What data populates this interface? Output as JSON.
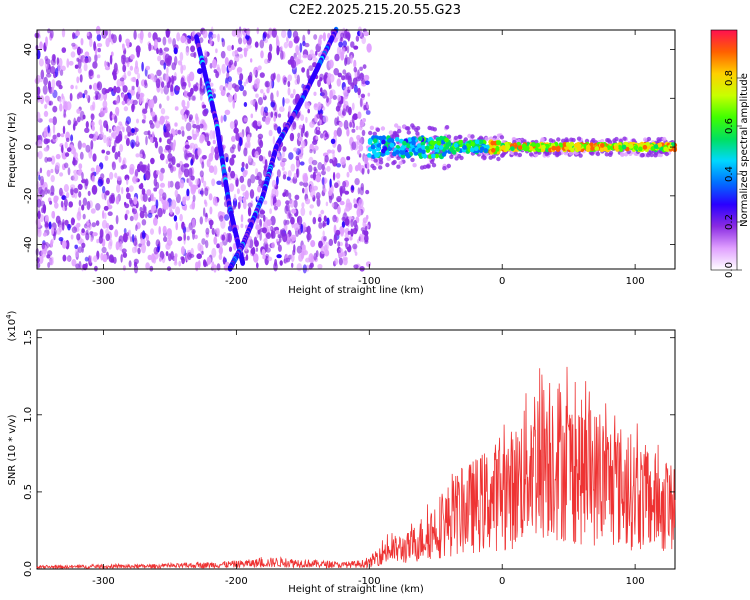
{
  "title": "C2E2.2025.215.20.55.G23",
  "chart_data": [
    {
      "type": "heatmap",
      "xlabel": "Height of straight line (km)",
      "ylabel": "Frequency (Hz)",
      "xlim": [
        -350,
        130
      ],
      "ylim": [
        -50,
        48
      ],
      "x_ticks": [
        -300,
        -200,
        -100,
        0,
        100
      ],
      "y_ticks": [
        -40,
        -20,
        0,
        20,
        40
      ],
      "colorbar": {
        "label": "Normalized spectral amplitude",
        "range": [
          0.0,
          1.0
        ],
        "ticks": [
          "0.0",
          "0.2",
          "0.4",
          "0.6",
          "0.8"
        ],
        "colormap": [
          "#ffffff",
          "#e0a0ff",
          "#8a2be2",
          "#2a00ff",
          "#0070ff",
          "#00d8ff",
          "#00e060",
          "#40ff00",
          "#c8ff00",
          "#ffd000",
          "#ff6000",
          "#ff1050"
        ]
      },
      "features": [
        {
          "name": "noise-field",
          "x_range": [
            -350,
            -100
          ],
          "y_range": [
            -50,
            48
          ]
        },
        {
          "name": "diagonal-track-1",
          "points": [
            [
              -230,
              45
            ],
            [
              -215,
              10
            ],
            [
              -205,
              -25
            ],
            [
              -195,
              -48
            ]
          ]
        },
        {
          "name": "diagonal-track-2",
          "points": [
            [
              -125,
              48
            ],
            [
              -150,
              20
            ],
            [
              -170,
              0
            ],
            [
              -180,
              -20
            ],
            [
              -195,
              -40
            ],
            [
              -205,
              -50
            ]
          ]
        },
        {
          "name": "carrier-line",
          "x_range": [
            -100,
            130
          ],
          "y_center": 0,
          "amplitude": [
            0.3,
            0.9
          ]
        }
      ]
    },
    {
      "type": "line",
      "xlabel": "Height of straight line (km)",
      "ylabel": "SNR (10 * v/v)",
      "y_multiplier": "(x10",
      "y_multiplier_exp": "4",
      "xlim": [
        -350,
        130
      ],
      "ylim": [
        0,
        1.55
      ],
      "x_ticks": [
        -300,
        -200,
        -100,
        0,
        100
      ],
      "y_ticks": [
        "0.0",
        "0.5",
        "1.0",
        "1.5"
      ],
      "series": [
        {
          "color": "#ee3333",
          "envelope": [
            {
              "x": -350,
              "y": 0.02
            },
            {
              "x": -250,
              "y": 0.03
            },
            {
              "x": -200,
              "y": 0.05
            },
            {
              "x": -170,
              "y": 0.07
            },
            {
              "x": -150,
              "y": 0.06
            },
            {
              "x": -120,
              "y": 0.04
            },
            {
              "x": -100,
              "y": 0.06
            },
            {
              "x": -90,
              "y": 0.18
            },
            {
              "x": -70,
              "y": 0.22
            },
            {
              "x": -50,
              "y": 0.42
            },
            {
              "x": -30,
              "y": 0.6
            },
            {
              "x": -10,
              "y": 0.72
            },
            {
              "x": 10,
              "y": 0.85
            },
            {
              "x": 20,
              "y": 1.1
            },
            {
              "x": 35,
              "y": 1.25
            },
            {
              "x": 50,
              "y": 1.05
            },
            {
              "x": 70,
              "y": 0.95
            },
            {
              "x": 90,
              "y": 0.85
            },
            {
              "x": 110,
              "y": 0.72
            },
            {
              "x": 130,
              "y": 0.62
            }
          ]
        }
      ]
    }
  ]
}
